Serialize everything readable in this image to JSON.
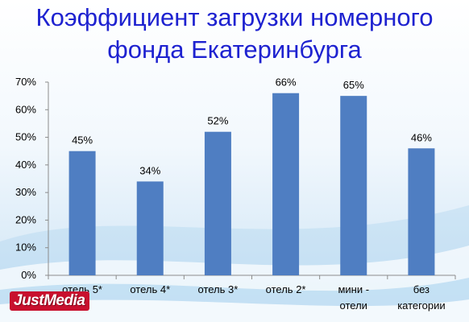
{
  "title_line1": "Коэффициент загрузки номерного",
  "title_line2": "фонда Екатеринбурга",
  "logo_text": "JustMedia",
  "colors": {
    "bar": "#4f7ec2",
    "title": "#1e22d0"
  },
  "chart_data": {
    "type": "bar",
    "title": "Коэффициент загрузки номерного фонда Екатеринбурга",
    "categories": [
      [
        "отель 5*"
      ],
      [
        "отель 4*"
      ],
      [
        "отель 3*"
      ],
      [
        "отель 2*"
      ],
      [
        "мини -",
        "отели"
      ],
      [
        "без",
        "категории"
      ]
    ],
    "values": [
      45,
      34,
      52,
      66,
      65,
      46
    ],
    "data_labels": [
      "45%",
      "34%",
      "52%",
      "66%",
      "65%",
      "46%"
    ],
    "y_ticks": [
      "0%",
      "10%",
      "20%",
      "30%",
      "40%",
      "50%",
      "60%",
      "70%"
    ],
    "ylim": [
      0,
      70
    ],
    "xlabel": "",
    "ylabel": "",
    "grid": false,
    "legend": "none"
  }
}
